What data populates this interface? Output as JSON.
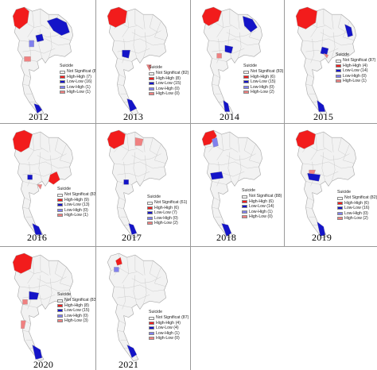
{
  "legend_title": "Suicide",
  "category_labels": {
    "ns": "Not Significat",
    "hh": "High-High",
    "ll": "Low-Low",
    "lh": "Low-High",
    "hl": "High-Low"
  },
  "colors": {
    "ns": "#f2f2f2",
    "hh": "#f21c1c",
    "ll": "#1414c8",
    "lh": "#8080ee",
    "hl": "#f08080",
    "border": "#a8a8a8"
  },
  "panels": [
    {
      "year": "2012",
      "counts": {
        "ns": "(81)",
        "hh": "(7)",
        "ll": "(16)",
        "lh": "(1)",
        "hl": "(1)"
      }
    },
    {
      "year": "2013",
      "counts": {
        "ns": "(82)",
        "hh": "(8)",
        "ll": "(15)",
        "lh": "(0)",
        "hl": "(0)"
      }
    },
    {
      "year": "2014",
      "counts": {
        "ns": "(83)",
        "hh": "(6)",
        "ll": "(15)",
        "lh": "(0)",
        "hl": "(2)"
      }
    },
    {
      "year": "2015",
      "counts": {
        "ns": "(87)",
        "hh": "(4)",
        "ll": "(14)",
        "lh": "(0)",
        "hl": "(1)"
      }
    },
    {
      "year": "2016",
      "counts": {
        "ns": "(83)",
        "hh": "(9)",
        "ll": "(13)",
        "lh": "(0)",
        "hl": "(1)"
      }
    },
    {
      "year": "2017",
      "counts": {
        "ns": "(61)",
        "hh": "(6)",
        "ll": "(7)",
        "lh": "(0)",
        "hl": "(2)"
      }
    },
    {
      "year": "2018",
      "counts": {
        "ns": "(88)",
        "hh": "(6)",
        "ll": "(14)",
        "lh": "(1)",
        "hl": "(0)"
      }
    },
    {
      "year": "2019",
      "counts": {
        "ns": "(82)",
        "hh": "(6)",
        "ll": "(16)",
        "lh": "(0)",
        "hl": "(2)"
      }
    },
    {
      "year": "2020",
      "counts": {
        "ns": "(83)",
        "hh": "(8)",
        "ll": "(15)",
        "lh": "(0)",
        "hl": "(3)"
      }
    },
    {
      "year": "2021",
      "counts": {
        "ns": "(87)",
        "hh": "(4)",
        "ll": "(4)",
        "lh": "(1)",
        "hl": "(0)"
      }
    }
  ]
}
